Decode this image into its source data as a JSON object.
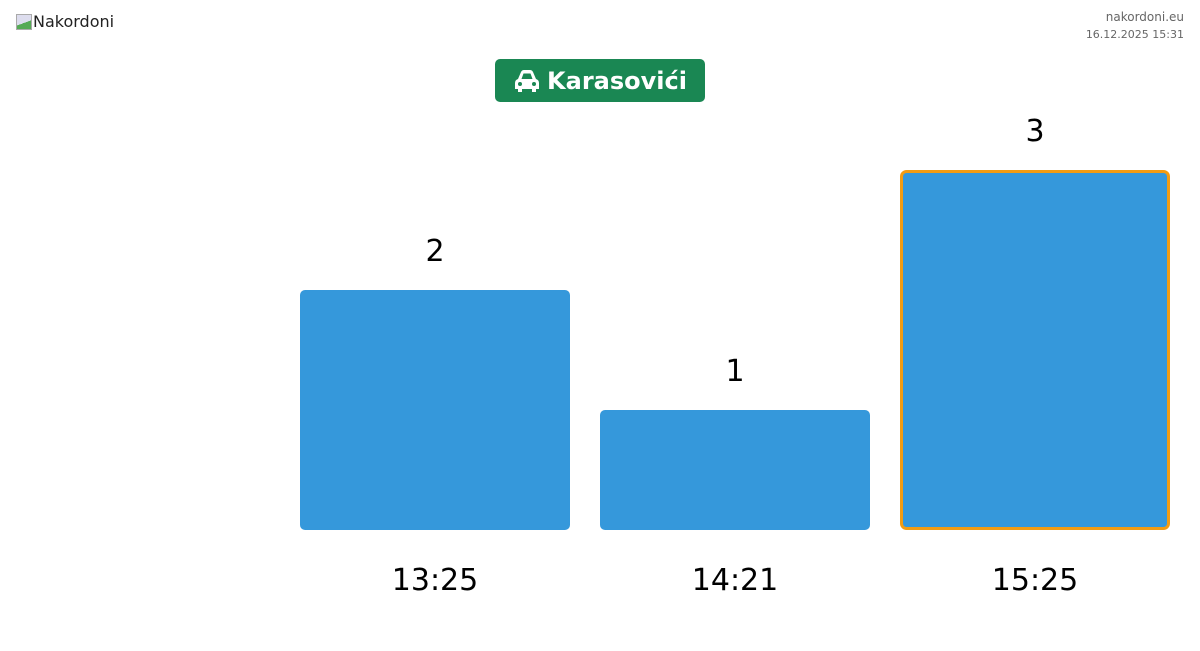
{
  "header": {
    "logo_alt": "Nakordoni",
    "site": "nakordoni.eu",
    "datetime": "16.12.2025 15:31"
  },
  "badge": {
    "icon": "car-icon",
    "label": "Karasovići",
    "color": "#1a8753"
  },
  "chart_data": {
    "type": "bar",
    "categories": [
      "13:25",
      "14:21",
      "15:25"
    ],
    "values": [
      2,
      1,
      3
    ],
    "ylim": [
      0,
      3
    ],
    "bar_color": "#3598db",
    "highlight_index": 2,
    "highlight_color": "#f39c12",
    "grid": false
  }
}
